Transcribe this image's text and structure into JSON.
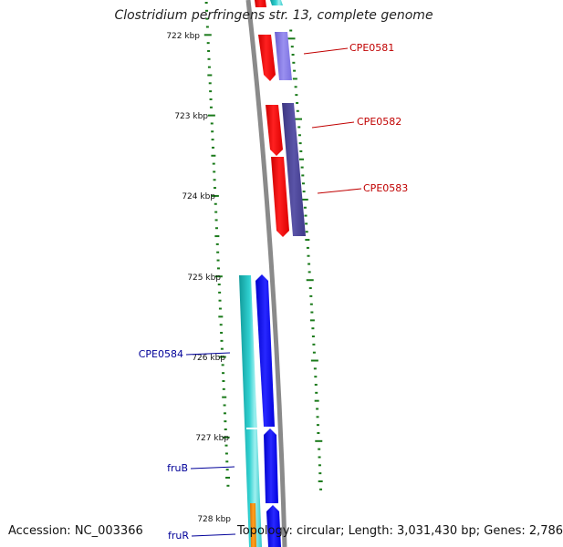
{
  "title": "Clostridium perfringens str. 13, complete genome",
  "footer": {
    "accession": "Accession: NC_003366",
    "topology": "Topology: circular; Length: 3,031,430 bp; Genes: 2,786"
  },
  "scale": {
    "labels": [
      "722 kbp",
      "723 kbp",
      "724 kbp",
      "725 kbp",
      "726 kbp",
      "727 kbp",
      "728 kbp"
    ]
  },
  "gene_labels": [
    {
      "text": "CPE0581",
      "strand": "forward"
    },
    {
      "text": "CPE0582",
      "strand": "forward"
    },
    {
      "text": "CPE0583",
      "strand": "forward"
    },
    {
      "text": "CPE0584",
      "strand": "reverse"
    },
    {
      "text": "fruB",
      "strand": "reverse"
    },
    {
      "text": "fruR",
      "strand": "reverse"
    }
  ],
  "colors": {
    "forward_cds": "#ff0000",
    "forward_track": "#4b4592",
    "reverse_cds": "#0000ff",
    "reverse_track": "#20c0c0",
    "backbone": "#888888",
    "ticks": "#1a7a1a",
    "forward_label": "#c00000",
    "reverse_label": "#000099",
    "misc_feature": "#ff8c00"
  }
}
